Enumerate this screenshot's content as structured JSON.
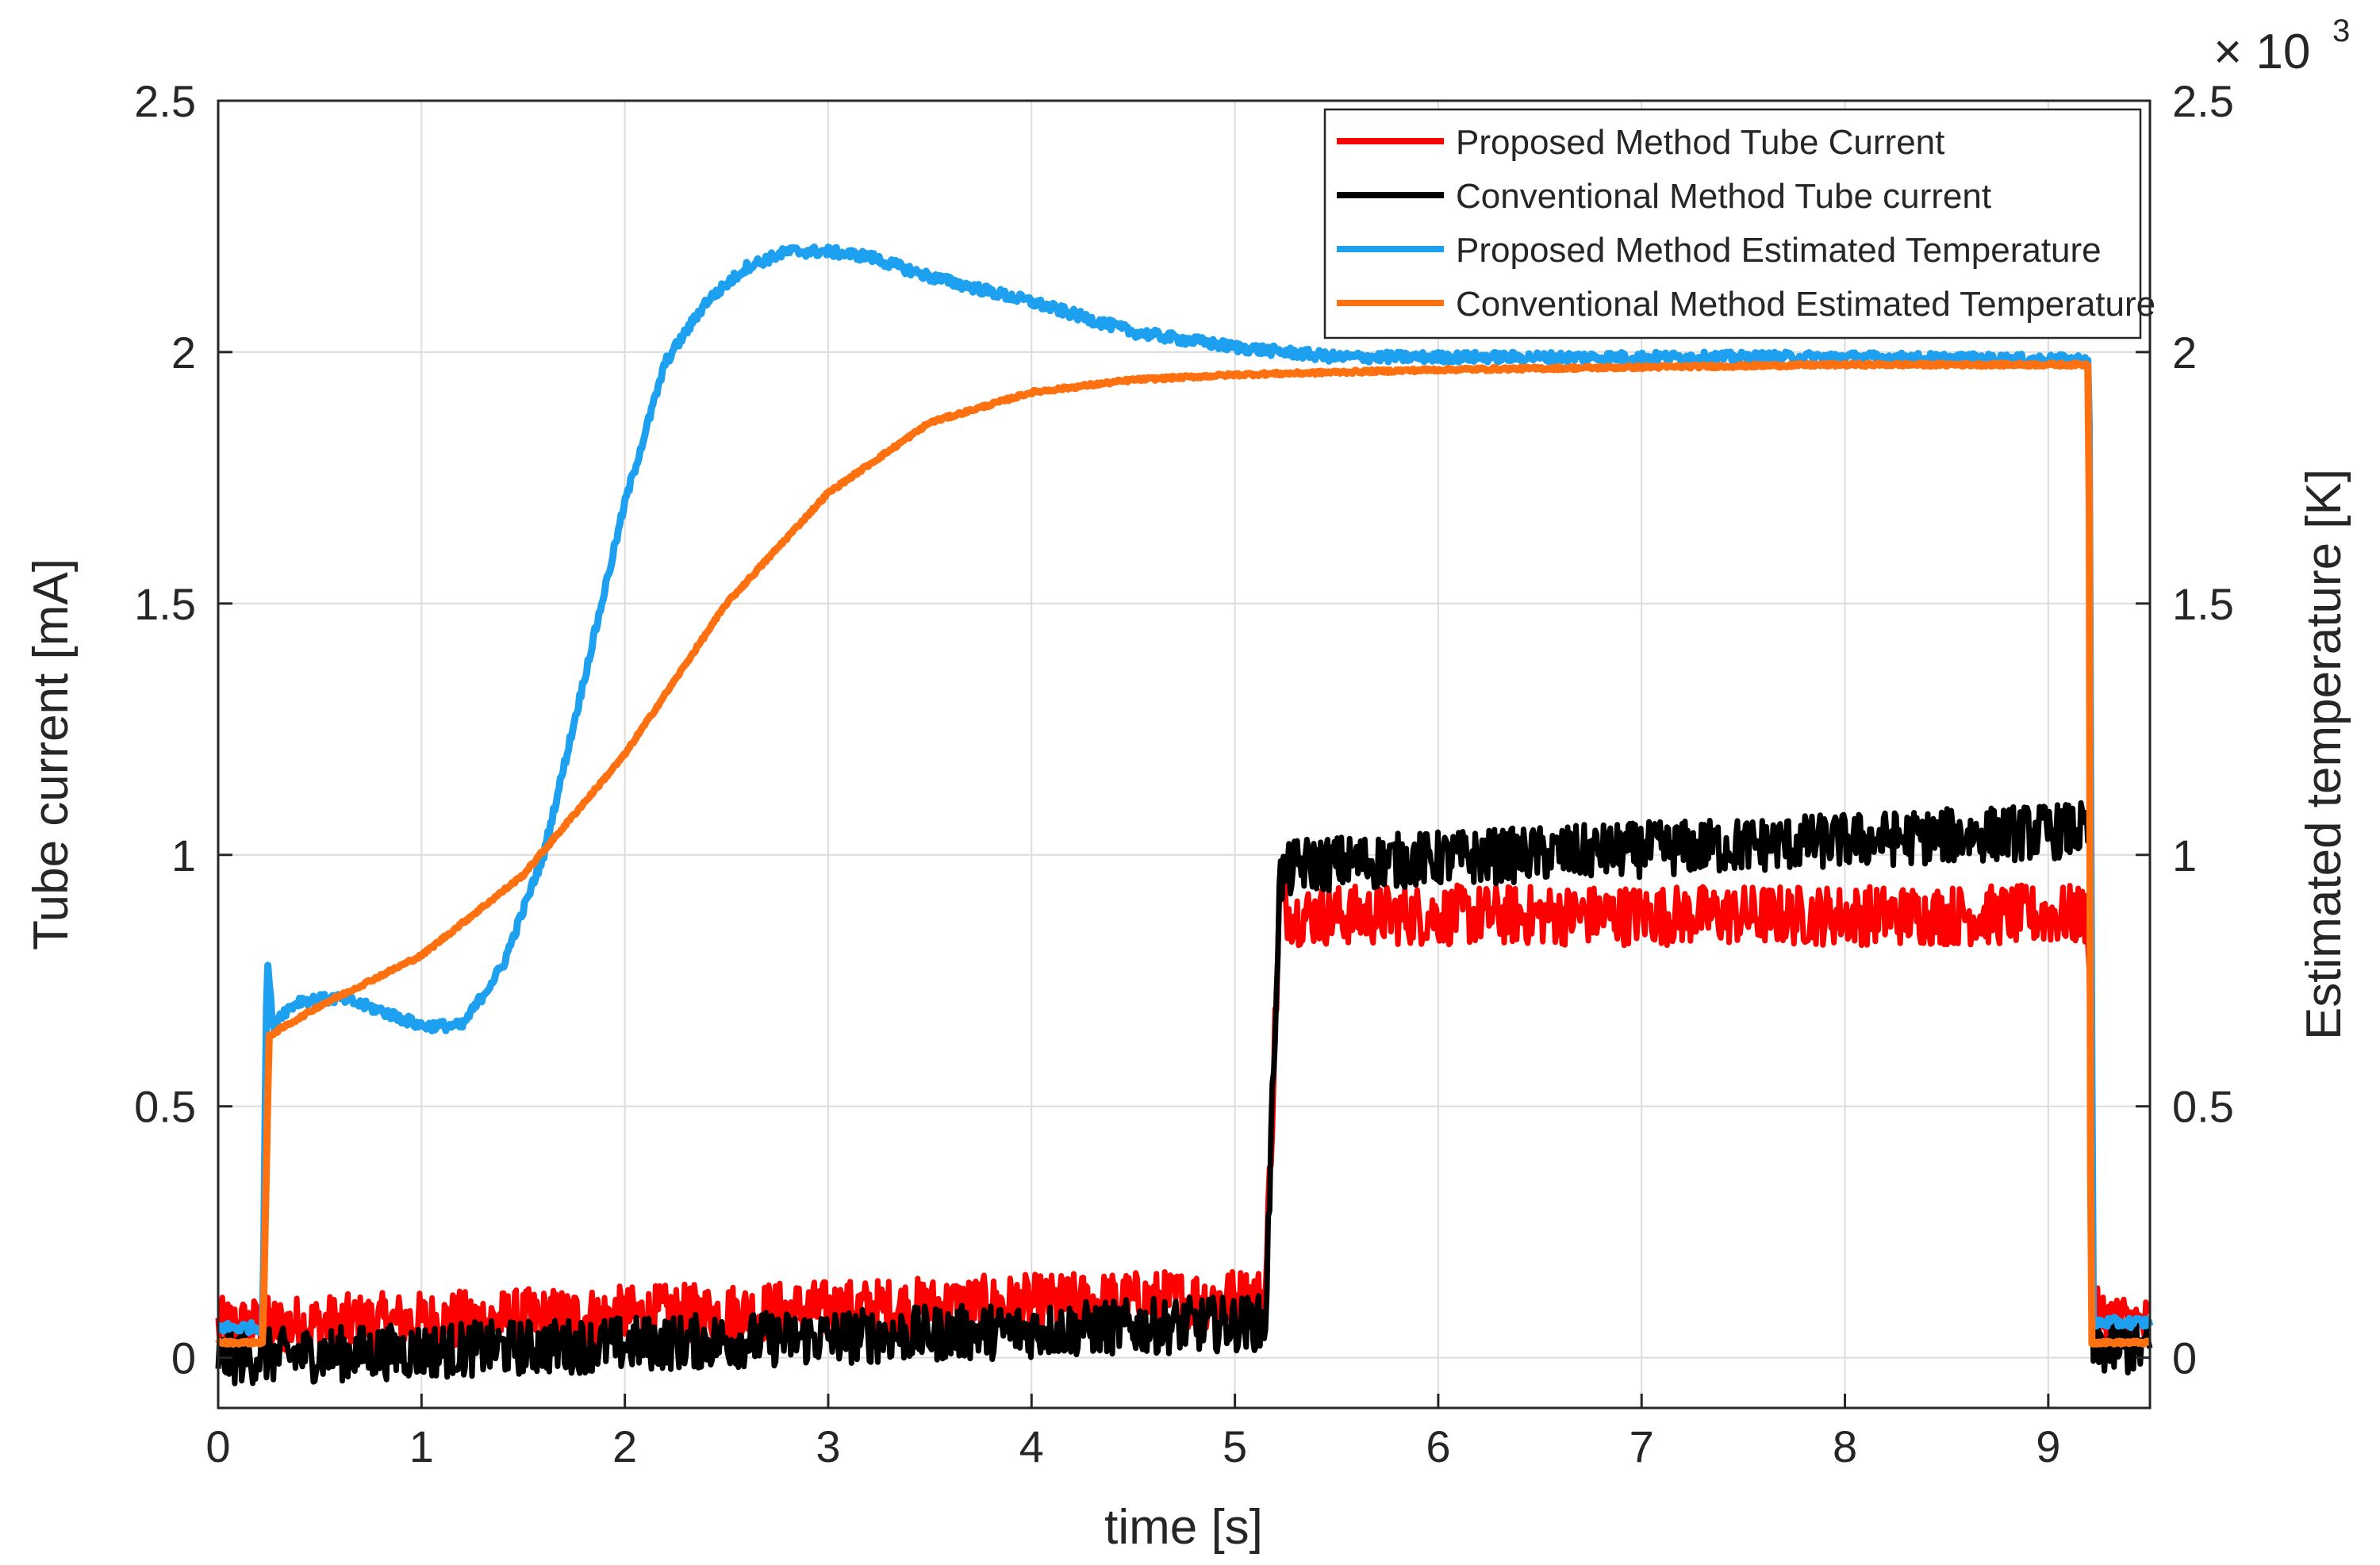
{
  "chart_data": {
    "type": "line",
    "xlabel": "time [s]",
    "ylabel_left": "Tube current [mA]",
    "ylabel_right": "Estimated temperature [K]",
    "right_axis_multiplier": "× 10",
    "right_axis_exponent": "3",
    "xlim": [
      0,
      9.5
    ],
    "ylim_left": [
      -0.1,
      2.5
    ],
    "ylim_right": [
      -100,
      2500
    ],
    "x_ticks": [
      "0",
      "1",
      "2",
      "3",
      "4",
      "5",
      "6",
      "7",
      "8",
      "9"
    ],
    "y_ticks_left": [
      "0",
      "0.5",
      "1",
      "1.5",
      "2",
      "2.5"
    ],
    "y_ticks_right": [
      "0",
      "0.5",
      "1",
      "1.5",
      "2",
      "2.5"
    ],
    "grid": true,
    "legend_position": "top-right",
    "colors": {
      "proposed_current": "#ff0000",
      "conventional_current": "#000000",
      "proposed_temperature": "#1ea0f0",
      "conventional_temperature": "#ff7010"
    },
    "series": [
      {
        "name": "Proposed Method Tube Current",
        "axis": "left",
        "color": "#ff0000",
        "noise": 0.06,
        "x": [
          0,
          5.15,
          5.22,
          5.3,
          9.2,
          9.22,
          9.5
        ],
        "y": [
          0.06,
          0.12,
          0.9,
          0.88,
          0.88,
          0.08,
          0.06
        ]
      },
      {
        "name": "Conventional Method Tube current",
        "axis": "left",
        "color": "#000000",
        "noise": 0.055,
        "x": [
          0,
          5.15,
          5.22,
          5.3,
          9.2,
          9.22,
          9.5
        ],
        "y": [
          0.0,
          0.07,
          0.95,
          0.98,
          1.05,
          0.02,
          0.02
        ]
      },
      {
        "name": "Proposed Method Estimated Temperature",
        "axis": "right",
        "color": "#1ea0f0",
        "noise": 10,
        "x": [
          0,
          0.22,
          0.24,
          0.27,
          0.3,
          0.4,
          0.6,
          0.8,
          1.0,
          1.2,
          1.4,
          1.6,
          1.8,
          2.0,
          2.2,
          2.4,
          2.6,
          2.8,
          3.0,
          3.2,
          3.5,
          4.0,
          4.5,
          5.0,
          5.5,
          6.0,
          7.0,
          8.0,
          9.0,
          9.2,
          9.22,
          9.5
        ],
        "y": [
          60,
          60,
          800,
          650,
          680,
          710,
          715,
          690,
          660,
          660,
          780,
          1000,
          1350,
          1700,
          1980,
          2100,
          2170,
          2200,
          2200,
          2190,
          2150,
          2100,
          2040,
          2010,
          1990,
          1990,
          1990,
          1990,
          1985,
          1985,
          70,
          70
        ]
      },
      {
        "name": "Conventional Method Estimated Temperature",
        "axis": "right",
        "color": "#ff7010",
        "noise": 3,
        "x": [
          0,
          0.22,
          0.25,
          0.5,
          1.0,
          1.5,
          2.0,
          2.5,
          3.0,
          3.5,
          4.0,
          4.5,
          5.0,
          6.0,
          7.0,
          8.0,
          9.0,
          9.2,
          9.21,
          9.5
        ],
        "y": [
          30,
          30,
          640,
          700,
          800,
          960,
          1200,
          1500,
          1720,
          1860,
          1920,
          1945,
          1955,
          1965,
          1970,
          1975,
          1975,
          1975,
          30,
          30
        ]
      }
    ]
  }
}
